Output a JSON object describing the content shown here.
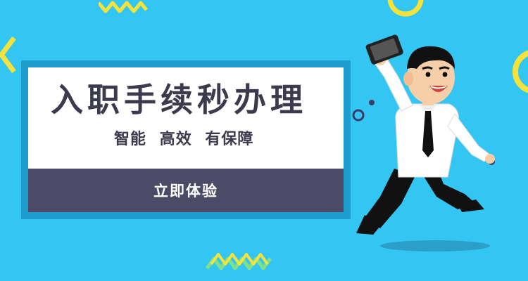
{
  "banner": {
    "headline": "入职手续秒办理",
    "tagline": [
      "智能",
      "高效",
      "有保障"
    ],
    "cta_label": "立即体验"
  },
  "colors": {
    "background": "#34c6f2",
    "frame": "#1e9ccc",
    "card": "#ffffff",
    "cta_bar": "#4b4a67",
    "text_dark": "#3b3b4d",
    "accent_yellow": "#f5e23a",
    "accent_green": "#7ee08a"
  },
  "icons": {
    "character": "man-holding-phone-illustration",
    "zigzag": "zigzag-decoration-icon",
    "ring": "ring-decoration-icon",
    "chevron": "chevron-decoration-icon"
  }
}
